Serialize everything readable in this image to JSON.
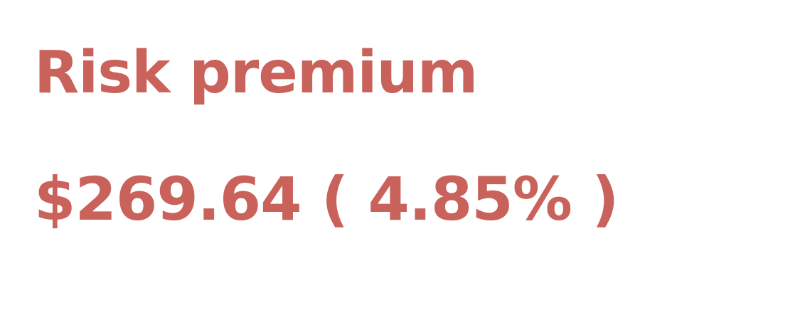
{
  "accent_color": "#C9625B",
  "risk_premium": {
    "title": "Risk premium",
    "amount": "$269.64",
    "open_paren": "(",
    "percent": "4.85%",
    "close_paren": ")"
  }
}
